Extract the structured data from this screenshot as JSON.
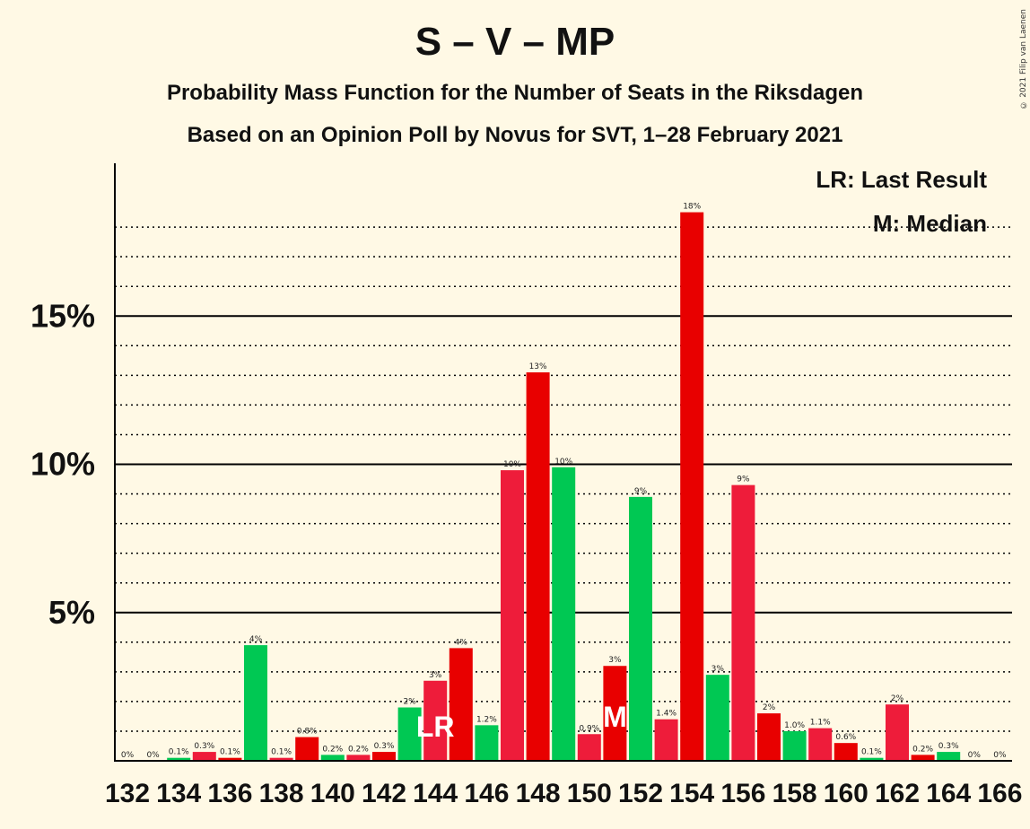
{
  "title": "S – V – MP",
  "subtitle": "Probability Mass Function for the Number of Seats in the Riksdagen",
  "subtitle2": "Based on an Opinion Poll by Novus for SVT, 1–28 February 2021",
  "copyright": "© 2021 Filip van Laenen",
  "legend": {
    "lr": "LR: Last Result",
    "m": "M: Median"
  },
  "markers": {
    "last_result_seat": 144,
    "last_result_label": "LR",
    "median_seat": 151,
    "median_label": "M"
  },
  "colors": {
    "red": "#E80000",
    "crimson": "#EE1C3A",
    "green": "#00C853",
    "background": "#FFF9E5"
  },
  "chart_data": {
    "type": "bar",
    "xlabel": "",
    "ylabel": "",
    "ylim": [
      0,
      20
    ],
    "yticks": [
      {
        "value": 5,
        "label": "5%"
      },
      {
        "value": 10,
        "label": "10%"
      },
      {
        "value": 15,
        "label": "15%"
      }
    ],
    "x_tick_labels": [
      "132",
      "134",
      "136",
      "138",
      "140",
      "142",
      "144",
      "146",
      "148",
      "150",
      "152",
      "154",
      "156",
      "158",
      "160",
      "162",
      "164",
      "166"
    ],
    "grid": "dotted minor lines every 1%, solid lines every 5%",
    "seats": [
      132,
      133,
      134,
      135,
      136,
      137,
      138,
      139,
      140,
      141,
      142,
      143,
      144,
      145,
      146,
      147,
      148,
      149,
      150,
      151,
      152,
      153,
      154,
      155,
      156,
      157,
      158,
      159,
      160,
      161,
      162,
      163,
      164,
      165,
      166
    ],
    "values": [
      0,
      0,
      0.1,
      0.3,
      0.1,
      3.9,
      0.1,
      0.8,
      0.2,
      0.2,
      0.3,
      1.8,
      2.7,
      3.8,
      1.2,
      9.8,
      13.1,
      9.9,
      0.9,
      3.2,
      8.9,
      1.4,
      18.5,
      2.9,
      9.3,
      1.6,
      1.0,
      1.1,
      0.6,
      0.1,
      1.9,
      0.2,
      0.3,
      0,
      0
    ],
    "value_labels": [
      "0%",
      "0%",
      "0.1%",
      "0.3%",
      "0.1%",
      "4%",
      "0.1%",
      "0.8%",
      "0.2%",
      "0.2%",
      "0.3%",
      "2%",
      "3%",
      "4%",
      "1.2%",
      "10%",
      "13%",
      "10%",
      "0.9%",
      "3%",
      "9%",
      "1.4%",
      "18%",
      "3%",
      "9%",
      "2%",
      "1.0%",
      "1.1%",
      "0.6%",
      "0.1%",
      "2%",
      "0.2%",
      "0.3%",
      "0%",
      "0%"
    ],
    "bar_colors": [
      "crimson",
      "red",
      "green",
      "crimson",
      "red",
      "green",
      "crimson",
      "red",
      "green",
      "crimson",
      "red",
      "green",
      "crimson",
      "red",
      "green",
      "crimson",
      "red",
      "green",
      "crimson",
      "red",
      "green",
      "crimson",
      "red",
      "green",
      "crimson",
      "red",
      "green",
      "crimson",
      "red",
      "green",
      "crimson",
      "red",
      "green",
      "crimson",
      "red"
    ]
  }
}
